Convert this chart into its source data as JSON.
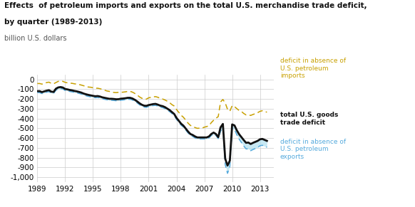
{
  "title_line1": "Effects  of petroleum imports and exports on the total U.S. merchandise trade deficit,",
  "title_line2": "by quarter (1989-2013)",
  "ylabel": "billion U.S. dollars",
  "xlim": [
    1989,
    2014.5
  ],
  "ylim": [
    -1050,
    50
  ],
  "yticks": [
    0,
    -100,
    -200,
    -300,
    -400,
    -500,
    -600,
    -700,
    -800,
    -900,
    -1000
  ],
  "xticks": [
    1989,
    1992,
    1995,
    1998,
    2001,
    2004,
    2007,
    2010,
    2013
  ],
  "bg_color": "#ffffff",
  "grid_color": "#cccccc",
  "label_no_imports": "deficit in absence of\nU.S. petroleum\nimports",
  "label_total": "total U.S. goods\ntrade deficit",
  "label_no_exports": "deficit in absence of\nU.S. petroleum\nexports",
  "color_no_imports": "#c8a000",
  "color_total": "#111111",
  "color_no_exports": "#55aadd",
  "fill_color": "#aaddee",
  "x": [
    1989.0,
    1989.25,
    1989.5,
    1989.75,
    1990.0,
    1990.25,
    1990.5,
    1990.75,
    1991.0,
    1991.25,
    1991.5,
    1991.75,
    1992.0,
    1992.25,
    1992.5,
    1992.75,
    1993.0,
    1993.25,
    1993.5,
    1993.75,
    1994.0,
    1994.25,
    1994.5,
    1994.75,
    1995.0,
    1995.25,
    1995.5,
    1995.75,
    1996.0,
    1996.25,
    1996.5,
    1996.75,
    1997.0,
    1997.25,
    1997.5,
    1997.75,
    1998.0,
    1998.25,
    1998.5,
    1998.75,
    1999.0,
    1999.25,
    1999.5,
    1999.75,
    2000.0,
    2000.25,
    2000.5,
    2000.75,
    2001.0,
    2001.25,
    2001.5,
    2001.75,
    2002.0,
    2002.25,
    2002.5,
    2002.75,
    2003.0,
    2003.25,
    2003.5,
    2003.75,
    2004.0,
    2004.25,
    2004.5,
    2004.75,
    2005.0,
    2005.25,
    2005.5,
    2005.75,
    2006.0,
    2006.25,
    2006.5,
    2006.75,
    2007.0,
    2007.25,
    2007.5,
    2007.75,
    2008.0,
    2008.25,
    2008.5,
    2008.75,
    2009.0,
    2009.25,
    2009.5,
    2009.75,
    2010.0,
    2010.25,
    2010.5,
    2010.75,
    2011.0,
    2011.25,
    2011.5,
    2011.75,
    2012.0,
    2012.25,
    2012.5,
    2012.75,
    2013.0,
    2013.25,
    2013.5,
    2013.75
  ],
  "total_deficit": [
    -120,
    -120,
    -130,
    -122,
    -115,
    -110,
    -125,
    -128,
    -95,
    -82,
    -78,
    -83,
    -98,
    -102,
    -108,
    -112,
    -118,
    -122,
    -128,
    -135,
    -145,
    -152,
    -158,
    -163,
    -168,
    -172,
    -170,
    -175,
    -183,
    -188,
    -193,
    -198,
    -198,
    -200,
    -203,
    -202,
    -197,
    -195,
    -192,
    -188,
    -188,
    -195,
    -208,
    -224,
    -243,
    -258,
    -268,
    -270,
    -262,
    -257,
    -252,
    -250,
    -258,
    -268,
    -273,
    -283,
    -298,
    -313,
    -333,
    -353,
    -393,
    -423,
    -453,
    -473,
    -503,
    -533,
    -558,
    -568,
    -583,
    -593,
    -593,
    -593,
    -593,
    -593,
    -583,
    -558,
    -543,
    -558,
    -590,
    -490,
    -455,
    -810,
    -880,
    -830,
    -460,
    -470,
    -520,
    -560,
    -590,
    -620,
    -648,
    -645,
    -660,
    -648,
    -638,
    -628,
    -612,
    -608,
    -618,
    -628
  ],
  "no_imports": [
    -42,
    -42,
    -48,
    -40,
    -32,
    -28,
    -40,
    -45,
    -32,
    -20,
    -18,
    -20,
    -30,
    -35,
    -38,
    -40,
    -45,
    -48,
    -52,
    -58,
    -65,
    -72,
    -78,
    -80,
    -85,
    -90,
    -90,
    -95,
    -102,
    -110,
    -118,
    -122,
    -128,
    -133,
    -135,
    -132,
    -132,
    -130,
    -127,
    -122,
    -122,
    -130,
    -143,
    -158,
    -178,
    -192,
    -200,
    -202,
    -188,
    -183,
    -178,
    -176,
    -183,
    -193,
    -200,
    -210,
    -222,
    -237,
    -257,
    -272,
    -307,
    -337,
    -367,
    -387,
    -417,
    -447,
    -470,
    -480,
    -492,
    -500,
    -498,
    -498,
    -488,
    -482,
    -473,
    -442,
    -417,
    -397,
    -380,
    -230,
    -205,
    -240,
    -305,
    -325,
    -268,
    -278,
    -298,
    -318,
    -328,
    -348,
    -363,
    -363,
    -368,
    -358,
    -350,
    -340,
    -326,
    -320,
    -328,
    -335
  ],
  "no_exports": [
    -135,
    -135,
    -145,
    -137,
    -130,
    -125,
    -140,
    -143,
    -110,
    -97,
    -93,
    -98,
    -113,
    -117,
    -123,
    -127,
    -133,
    -137,
    -143,
    -150,
    -160,
    -167,
    -173,
    -178,
    -183,
    -187,
    -185,
    -190,
    -198,
    -203,
    -208,
    -213,
    -213,
    -215,
    -218,
    -217,
    -212,
    -210,
    -207,
    -203,
    -203,
    -210,
    -223,
    -239,
    -258,
    -273,
    -283,
    -285,
    -277,
    -272,
    -267,
    -265,
    -273,
    -283,
    -288,
    -298,
    -313,
    -328,
    -348,
    -368,
    -408,
    -438,
    -468,
    -488,
    -518,
    -548,
    -573,
    -583,
    -598,
    -608,
    -608,
    -608,
    -608,
    -608,
    -598,
    -573,
    -558,
    -573,
    -605,
    -530,
    -490,
    -870,
    -960,
    -890,
    -500,
    -510,
    -565,
    -610,
    -645,
    -680,
    -710,
    -710,
    -728,
    -716,
    -706,
    -695,
    -678,
    -673,
    -683,
    -693
  ]
}
